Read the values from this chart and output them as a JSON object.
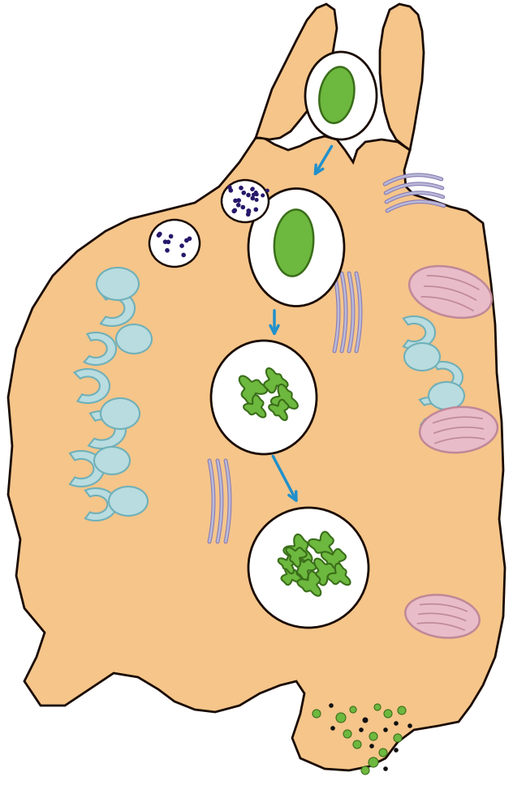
{
  "bg_color": "#ffffff",
  "cell_color": "#f5c58a",
  "cell_outline": "#1a0a00",
  "white_fill": "#ffffff",
  "green_bact": "#6db83e",
  "green_outline": "#3a6e1a",
  "lb_fill": "#b8dce0",
  "lb_outline": "#70b0b8",
  "pink_fill": "#e8bcc8",
  "pink_outline": "#c08898",
  "er_fill": "#b8b8d8",
  "er_outline": "#8878b0",
  "purple_dot": "#28186a",
  "arrow_color": "#2090cc",
  "dark": "#1a0a00",
  "fig_w": 6.32,
  "fig_h": 9.84,
  "dpi": 100
}
